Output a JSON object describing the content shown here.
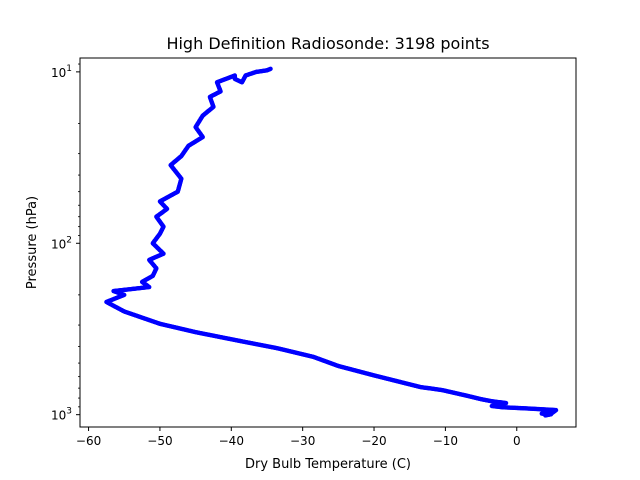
{
  "chart_data": {
    "type": "scatter",
    "title": "High Definition Radiosonde: 3198 points",
    "xlabel": "Dry Bulb Temperature (C)",
    "ylabel": "Pressure (hPa)",
    "x_scale": "linear",
    "y_scale": "log",
    "y_inverted": true,
    "xlim": [
      -61.2,
      8.3
    ],
    "ylim": [
      1180,
      8.3
    ],
    "x_ticks": [
      -60,
      -50,
      -40,
      -30,
      -20,
      -10,
      0
    ],
    "x_tick_labels": [
      "−60",
      "−50",
      "−40",
      "−30",
      "−20",
      "−10",
      "0"
    ],
    "y_ticks": [
      {
        "value": 10,
        "base": "10",
        "exp": "1"
      },
      {
        "value": 100,
        "base": "10",
        "exp": "2"
      },
      {
        "value": 1000,
        "base": "10",
        "exp": "3"
      }
    ],
    "grid": false,
    "series": [
      {
        "color": "#0000ff",
        "marker": "dot",
        "points": [
          [
            4.0,
            1010
          ],
          [
            4.8,
            995
          ],
          [
            3.5,
            985
          ],
          [
            5.0,
            975
          ],
          [
            5.5,
            940
          ],
          [
            1.5,
            920
          ],
          [
            -2.0,
            905
          ],
          [
            -3.5,
            890
          ],
          [
            -1.5,
            855
          ],
          [
            -3.5,
            835
          ],
          [
            -5.0,
            812
          ],
          [
            -7.0,
            775
          ],
          [
            -10.5,
            718
          ],
          [
            -13.5,
            690
          ],
          [
            -20.0,
            590
          ],
          [
            -25.0,
            520
          ],
          [
            -28.5,
            460
          ],
          [
            -33.5,
            410
          ],
          [
            -39.0,
            370
          ],
          [
            -45.0,
            330
          ],
          [
            -50.0,
            295
          ],
          [
            -55.0,
            250
          ],
          [
            -57.5,
            220
          ],
          [
            -55.0,
            200
          ],
          [
            -56.5,
            190
          ],
          [
            -54.0,
            185
          ],
          [
            -51.5,
            180
          ],
          [
            -52.5,
            168
          ],
          [
            -51.0,
            155
          ],
          [
            -50.5,
            140
          ],
          [
            -51.5,
            125
          ],
          [
            -49.5,
            115
          ],
          [
            -51.0,
            100
          ],
          [
            -50.0,
            88
          ],
          [
            -49.5,
            80
          ],
          [
            -50.5,
            70
          ],
          [
            -49.0,
            63
          ],
          [
            -50.0,
            57
          ],
          [
            -47.5,
            50
          ],
          [
            -47.0,
            42
          ],
          [
            -48.5,
            35
          ],
          [
            -47.0,
            31
          ],
          [
            -46.0,
            27
          ],
          [
            -44.0,
            24
          ],
          [
            -45.0,
            21
          ],
          [
            -44.0,
            18
          ],
          [
            -42.5,
            16
          ],
          [
            -43.0,
            14
          ],
          [
            -41.5,
            13
          ],
          [
            -42.0,
            11.5
          ],
          [
            -39.5,
            10.5
          ],
          [
            -39.5,
            11.0
          ],
          [
            -38.5,
            11.5
          ],
          [
            -38.0,
            10.5
          ],
          [
            -36.5,
            10.0
          ],
          [
            -35.0,
            9.8
          ],
          [
            -34.5,
            9.6
          ]
        ]
      }
    ]
  }
}
